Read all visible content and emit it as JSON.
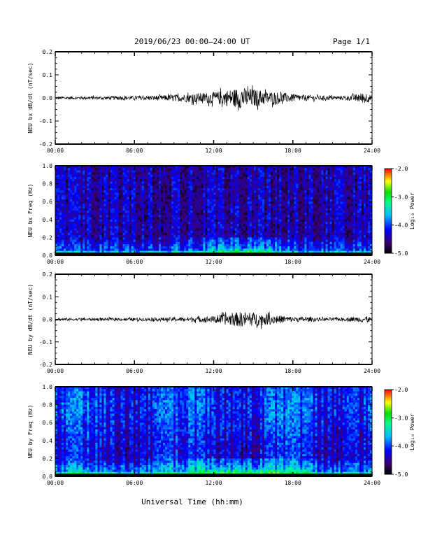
{
  "header": {
    "title": "2019/06/23  00:00–24:00 UT",
    "page": "Page 1/1"
  },
  "xlabel": "Universal Time (hh:mm)",
  "x_ticks": [
    "00:00",
    "06:00",
    "12:00",
    "18:00",
    "24:00"
  ],
  "colorbar": {
    "label": "Log₁₀ Power",
    "ticks": [
      "-2.0",
      "-3.0",
      "-4.0",
      "-5.0"
    ]
  },
  "chart_data": [
    {
      "type": "line",
      "ylabel": "NEU bx dB/dt (nT/sec)",
      "ylim": [
        -0.2,
        0.2
      ],
      "y_ticks": [
        "0.2",
        "0.1",
        "0.0",
        "-0.1",
        "-0.2"
      ],
      "xlim": [
        0,
        24
      ],
      "envelope_hours": [
        0,
        2,
        4,
        6,
        8,
        10,
        11,
        12,
        13,
        14,
        15,
        16,
        17,
        18,
        20,
        22,
        23.5,
        24
      ],
      "envelope_amplitude": [
        0.006,
        0.007,
        0.007,
        0.009,
        0.011,
        0.018,
        0.022,
        0.025,
        0.035,
        0.045,
        0.04,
        0.03,
        0.025,
        0.016,
        0.01,
        0.008,
        0.025,
        0.01
      ]
    },
    {
      "type": "heatmap",
      "ylabel": "NEU bx Freq (Hz)",
      "ylim": [
        0.0,
        1.0
      ],
      "y_ticks": [
        "1.0",
        "0.8",
        "0.6",
        "0.4",
        "0.2",
        "0.0"
      ],
      "xlim": [
        0,
        24
      ],
      "color_range": [
        -5.0,
        -2.0
      ]
    },
    {
      "type": "line",
      "ylabel": "NEU by dB/dt (nT/sec)",
      "ylim": [
        -0.2,
        0.2
      ],
      "y_ticks": [
        "0.2",
        "0.1",
        "0.0",
        "-0.1",
        "-0.2"
      ],
      "xlim": [
        0,
        24
      ],
      "envelope_hours": [
        0,
        2,
        4,
        6,
        8,
        10,
        11,
        12,
        13,
        14,
        15,
        16,
        17,
        18,
        20,
        22,
        23.5,
        24
      ],
      "envelope_amplitude": [
        0.006,
        0.006,
        0.006,
        0.007,
        0.008,
        0.01,
        0.012,
        0.015,
        0.025,
        0.033,
        0.03,
        0.025,
        0.018,
        0.012,
        0.008,
        0.007,
        0.015,
        0.008
      ]
    },
    {
      "type": "heatmap",
      "ylabel": "NEU by Freq (Hz)",
      "ylim": [
        0.0,
        1.0
      ],
      "y_ticks": [
        "1.0",
        "0.8",
        "0.6",
        "0.4",
        "0.2",
        "0.0"
      ],
      "xlim": [
        0,
        24
      ],
      "color_range": [
        -5.0,
        -2.0
      ]
    }
  ]
}
